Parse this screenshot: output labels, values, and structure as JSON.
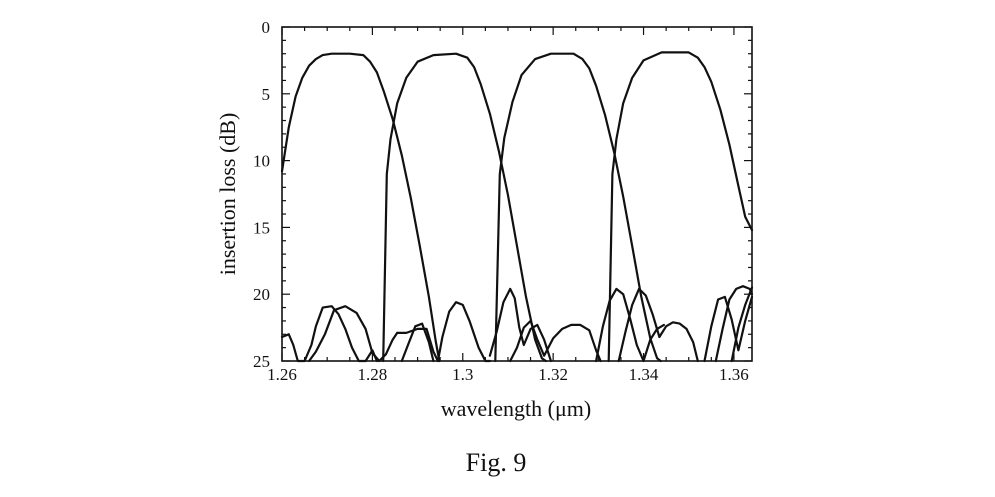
{
  "caption": "Fig. 9",
  "chart_data": {
    "type": "line",
    "title": "",
    "xlabel": "wavelength (μm)",
    "ylabel": "insertion loss (dB)",
    "xlim": [
      1.26,
      1.364
    ],
    "ylim": [
      0,
      25
    ],
    "y_inverted": true,
    "grid": false,
    "legend": "none",
    "x_ticks": [
      1.26,
      1.28,
      1.3,
      1.32,
      1.34,
      1.36
    ],
    "x_tick_labels": [
      "1.26",
      "1.28",
      "1.3",
      "1.32",
      "1.34",
      "1.36"
    ],
    "y_ticks": [
      0,
      5,
      10,
      15,
      20,
      25
    ],
    "y_tick_labels": [
      "0",
      "5",
      "10",
      "15",
      "20",
      "25"
    ],
    "series": [
      {
        "x": [
          1.26,
          1.2615,
          1.263,
          1.2645,
          1.266,
          1.2675,
          1.269,
          1.271,
          1.275,
          1.278,
          1.2795,
          1.281,
          1.2825,
          1.2845,
          1.2865,
          1.2885,
          1.2905,
          1.2925,
          1.294,
          1.2948
        ],
        "y": [
          10.8,
          7.5,
          5.2,
          3.8,
          2.9,
          2.4,
          2.1,
          2.0,
          2.0,
          2.1,
          2.6,
          3.4,
          4.8,
          6.9,
          9.6,
          12.8,
          16.4,
          20.2,
          23.5,
          25.0
        ]
      },
      {
        "x": [
          1.2824,
          1.2832,
          1.284,
          1.2855,
          1.2875,
          1.29,
          1.2935,
          1.2985,
          1.301,
          1.3025,
          1.304,
          1.306,
          1.308,
          1.31,
          1.312,
          1.314,
          1.316,
          1.3175,
          1.3184
        ],
        "y": [
          25.0,
          11.0,
          8.4,
          5.7,
          3.8,
          2.6,
          2.1,
          2.0,
          2.3,
          3.0,
          4.3,
          6.5,
          9.3,
          12.6,
          16.4,
          20.2,
          23.4,
          24.8,
          25.0
        ]
      },
      {
        "x": [
          1.3072,
          1.3082,
          1.3092,
          1.311,
          1.313,
          1.316,
          1.3195,
          1.3245,
          1.3265,
          1.328,
          1.3295,
          1.3315,
          1.3335,
          1.3355,
          1.3375,
          1.3395,
          1.3415,
          1.343,
          1.3438
        ],
        "y": [
          25.0,
          11.0,
          8.3,
          5.6,
          3.6,
          2.4,
          2.0,
          2.0,
          2.4,
          3.1,
          4.4,
          6.6,
          9.4,
          12.7,
          16.4,
          20.2,
          23.3,
          24.8,
          25.0
        ]
      },
      {
        "x": [
          1.3323,
          1.3331,
          1.334,
          1.3355,
          1.3375,
          1.34,
          1.344,
          1.35,
          1.352,
          1.3535,
          1.355,
          1.357,
          1.359,
          1.361,
          1.3625,
          1.364
        ],
        "y": [
          25.0,
          11.0,
          8.4,
          5.7,
          3.8,
          2.5,
          1.9,
          1.9,
          2.3,
          3.0,
          4.1,
          6.2,
          8.8,
          11.9,
          14.2,
          15.2
        ]
      },
      {
        "x": [
          1.26,
          1.2615,
          1.2625,
          1.2635,
          1.265,
          1.2665,
          1.2675,
          1.269,
          1.271,
          1.2725,
          1.274,
          1.2755,
          1.277,
          1.2785,
          1.28,
          1.281
        ],
        "y": [
          23.2,
          23.0,
          23.8,
          25.0,
          25.0,
          23.8,
          22.4,
          21.0,
          20.9,
          21.5,
          22.6,
          24.0,
          25.0,
          25.0,
          24.2,
          25.0
        ]
      },
      {
        "x": [
          1.266,
          1.2675,
          1.2695,
          1.2715,
          1.274,
          1.2765,
          1.2785,
          1.28,
          1.2815,
          1.283,
          1.2845,
          1.2855
        ],
        "y": [
          25.0,
          24.3,
          23.0,
          21.2,
          20.9,
          21.4,
          22.6,
          24.4,
          25.0,
          24.5,
          23.4,
          22.9
        ]
      },
      {
        "x": [
          1.2855,
          1.2875,
          1.29,
          1.292,
          1.2935,
          1.2945,
          1.2955,
          1.297,
          1.2985,
          1.3,
          1.3015,
          1.3035,
          1.305,
          1.306
        ],
        "y": [
          22.9,
          22.9,
          22.6,
          22.6,
          24.3,
          25.0,
          23.2,
          21.3,
          20.6,
          20.8,
          22.0,
          24.0,
          25.0,
          25.0
        ]
      },
      {
        "x": [
          1.2865,
          1.288,
          1.2895,
          1.291,
          1.2925,
          1.2935
        ],
        "y": [
          25.0,
          23.7,
          22.4,
          22.2,
          23.6,
          25.0
        ]
      },
      {
        "x": [
          1.306,
          1.3075,
          1.309,
          1.3105,
          1.3115,
          1.3125,
          1.3135,
          1.315,
          1.3165,
          1.318,
          1.3195
        ],
        "y": [
          24.6,
          22.8,
          20.6,
          19.6,
          20.3,
          22.5,
          23.8,
          22.6,
          22.3,
          23.4,
          25.0
        ]
      },
      {
        "x": [
          1.3105,
          1.312,
          1.3135,
          1.315,
          1.3165,
          1.318,
          1.32,
          1.322,
          1.324,
          1.326,
          1.328,
          1.3295,
          1.3305
        ],
        "y": [
          25.0,
          24.0,
          22.5,
          22.0,
          23.4,
          24.6,
          23.3,
          22.6,
          22.3,
          22.3,
          22.7,
          24.2,
          25.0
        ]
      },
      {
        "x": [
          1.3295,
          1.331,
          1.3325,
          1.334,
          1.3355,
          1.337,
          1.3385,
          1.34,
          1.3415,
          1.343,
          1.3445
        ],
        "y": [
          25.0,
          22.4,
          20.5,
          19.6,
          20.0,
          21.8,
          23.8,
          25.0,
          23.4,
          22.6,
          22.3
        ]
      },
      {
        "x": [
          1.3345,
          1.336,
          1.3375,
          1.339,
          1.3405,
          1.342,
          1.3435,
          1.345,
          1.3465,
          1.348,
          1.3495,
          1.351,
          1.352
        ],
        "y": [
          25.0,
          22.8,
          20.8,
          19.6,
          20.1,
          21.5,
          23.2,
          22.4,
          22.1,
          22.2,
          22.6,
          23.6,
          25.0
        ]
      },
      {
        "x": [
          1.3535,
          1.355,
          1.3565,
          1.358,
          1.3595,
          1.361,
          1.3625,
          1.364
        ],
        "y": [
          25.0,
          22.4,
          20.4,
          20.2,
          21.9,
          24.2,
          22.0,
          20.2
        ]
      },
      {
        "x": [
          1.356,
          1.3575,
          1.359,
          1.3605,
          1.362,
          1.3635,
          1.364
        ],
        "y": [
          25.0,
          22.6,
          20.4,
          19.6,
          19.4,
          19.6,
          20.0
        ]
      },
      {
        "x": [
          1.3595,
          1.361,
          1.3625,
          1.364
        ],
        "y": [
          25.0,
          22.5,
          20.8,
          19.5
        ]
      }
    ]
  }
}
